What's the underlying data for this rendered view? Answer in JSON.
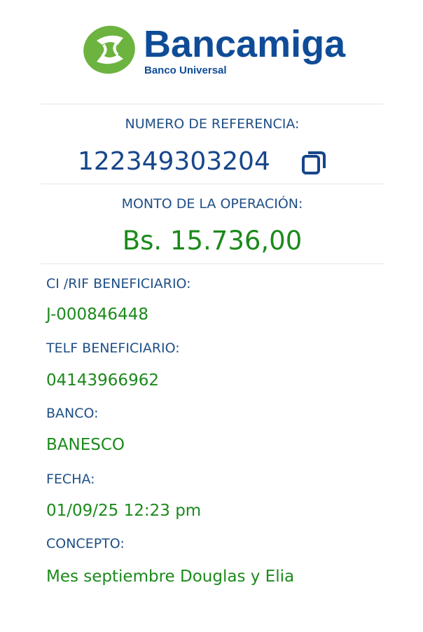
{
  "logo": {
    "name": "Bancamiga",
    "tagline": "Banco Universal",
    "colors": {
      "green": "#6cb33f",
      "blue": "#0f4c97"
    }
  },
  "reference": {
    "label": "NUMERO DE REFERENCIA:",
    "value": "122349303204",
    "copy_icon": "copy-icon"
  },
  "amount": {
    "label": "MONTO DE LA OPERACIÓN:",
    "value": "Bs. 15.736,00"
  },
  "fields": [
    {
      "label": "CI /RIF BENEFICIARIO:",
      "value": "J-000846448"
    },
    {
      "label": "TELF BENEFICIARIO:",
      "value": "04143966962"
    },
    {
      "label": "BANCO:",
      "value": "BANESCO"
    },
    {
      "label": "FECHA:",
      "value": "01/09/25 12:23 pm"
    },
    {
      "label": "CONCEPTO:",
      "value": "Mes septiembre Douglas y Elia"
    }
  ],
  "colors": {
    "label": "#1f4f86",
    "value": "#1b8a1b",
    "reference": "#17468a"
  }
}
